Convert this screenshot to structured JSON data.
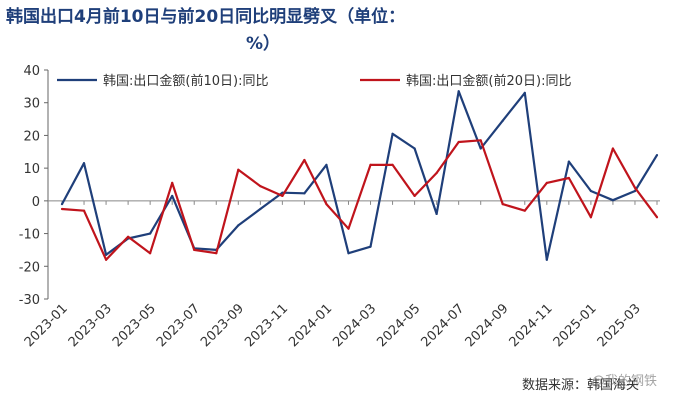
{
  "chart_data": {
    "type": "line",
    "title_line1": "韩国出口4月前10日与前20日同比明显劈叉（单位：",
    "title_line2": "%）",
    "x": [
      "2023-01",
      "2023-02",
      "2023-03",
      "2023-04",
      "2023-05",
      "2023-06",
      "2023-07",
      "2023-08",
      "2023-09",
      "2023-10",
      "2023-11",
      "2023-12",
      "2024-01",
      "2024-02",
      "2024-03",
      "2024-04",
      "2024-05",
      "2024-06",
      "2024-07",
      "2024-08",
      "2024-09",
      "2024-10",
      "2024-11",
      "2024-12",
      "2025-01",
      "2025-02",
      "2025-03",
      "2025-04"
    ],
    "x_tick_labels": [
      "2023-01",
      "2023-03",
      "2023-05",
      "2023-07",
      "2023-09",
      "2023-11",
      "2024-01",
      "2024-03",
      "2024-05",
      "2024-07",
      "2024-09",
      "2024-11",
      "2025-01",
      "2025-03"
    ],
    "ylim": [
      -30,
      40
    ],
    "yticks": [
      -30,
      -20,
      -10,
      0,
      10,
      20,
      30,
      40
    ],
    "series": [
      {
        "name": "韩国:出口金额(前10日):同比",
        "color": "#1f3f7a",
        "values": [
          -1,
          11.5,
          -16.5,
          -11.5,
          -10,
          1.5,
          -14.5,
          -15,
          -7.5,
          -2.5,
          2.5,
          2.3,
          11,
          -16,
          -14,
          20.5,
          16,
          -4,
          33.5,
          16,
          24.5,
          33,
          -18,
          12,
          3,
          0.2,
          3,
          14
        ]
      },
      {
        "name": "韩国:出口金额(前20日):同比",
        "color": "#c0141c",
        "values": [
          -2.5,
          -3,
          -18,
          -11,
          -16,
          5.5,
          -15,
          -16,
          9.5,
          4.5,
          1.5,
          12.5,
          -1,
          -8.5,
          11,
          11,
          1.5,
          8.5,
          18,
          18.5,
          -1,
          -3,
          5.5,
          7,
          -5,
          16,
          4,
          -5
        ]
      }
    ],
    "legend_position": "top",
    "grid": false
  },
  "source_text": "数据来源：韩国海关",
  "watermark_text": "@我的钢铁"
}
